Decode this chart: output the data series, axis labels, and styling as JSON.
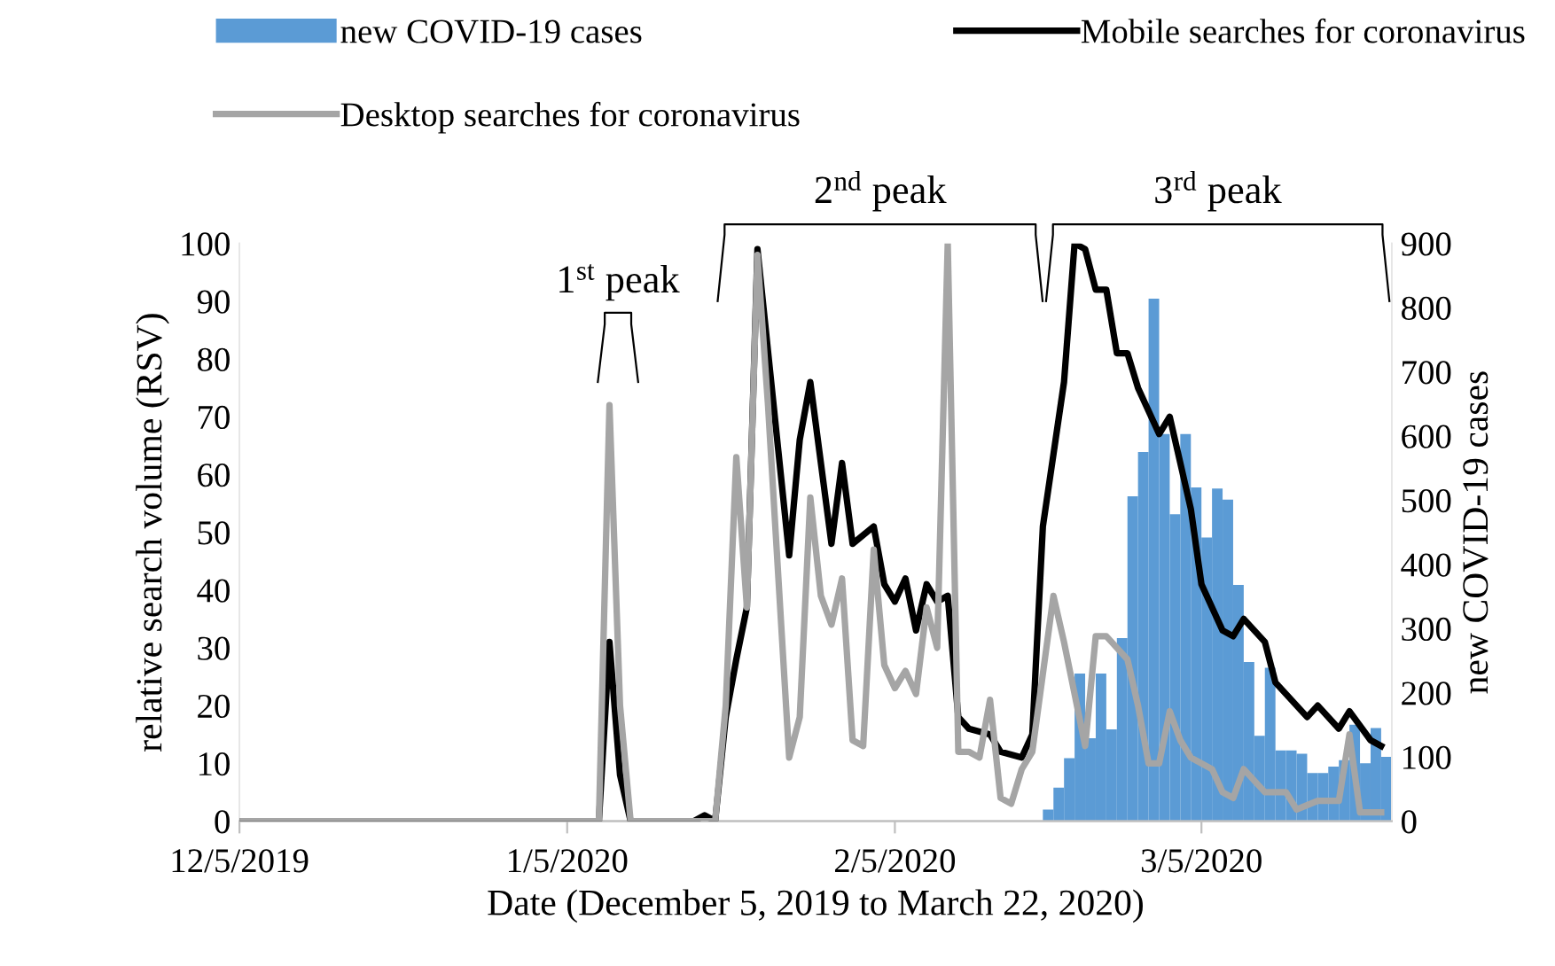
{
  "chart_data": {
    "type": "bar",
    "xlabel": "Date (December 5, 2019 to March 22, 2020)",
    "ylabel": "relative search volume (RSV)",
    "y2label": "new COVID-19 cases",
    "xlim": [
      "2019-12-05",
      "2020-03-23"
    ],
    "xticks": [
      {
        "value": "2019-12-05",
        "label": "12/5/2019"
      },
      {
        "value": "2020-01-05",
        "label": "1/5/2020"
      },
      {
        "value": "2020-02-05",
        "label": "2/5/2020"
      },
      {
        "value": "2020-03-05",
        "label": "3/5/2020"
      }
    ],
    "ylim": [
      0,
      100
    ],
    "yticks": [
      0,
      10,
      20,
      30,
      40,
      50,
      60,
      70,
      80,
      90,
      100
    ],
    "y2lim": [
      0,
      900
    ],
    "y2ticks": [
      0,
      100,
      200,
      300,
      400,
      500,
      600,
      700,
      800,
      900
    ],
    "grid": false,
    "legend": "top",
    "annotations": [
      "1$^{st}$ peak",
      "2$^{nd}$ peak",
      "3$^{rd}$ peak"
    ],
    "series": [
      {
        "name": "new COVID-19 cases",
        "axis": "y2",
        "color": "#5b9bd5",
        "x": [
          "2020-02-19",
          "2020-02-20",
          "2020-02-21",
          "2020-02-22",
          "2020-02-23",
          "2020-02-24",
          "2020-02-25",
          "2020-02-26",
          "2020-02-27",
          "2020-02-28",
          "2020-02-29",
          "2020-03-01",
          "2020-03-02",
          "2020-03-03",
          "2020-03-04",
          "2020-03-05",
          "2020-03-06",
          "2020-03-07",
          "2020-03-08",
          "2020-03-09",
          "2020-03-10",
          "2020-03-11",
          "2020-03-12",
          "2020-03-13",
          "2020-03-14",
          "2020-03-15",
          "2020-03-16",
          "2020-03-17",
          "2020-03-18",
          "2020-03-19",
          "2020-03-20",
          "2020-03-21",
          "2020-03-22"
        ],
        "values": [
          18,
          52,
          98,
          230,
          129,
          230,
          143,
          285,
          506,
          575,
          814,
          603,
          478,
          603,
          520,
          442,
          518,
          501,
          368,
          248,
          133,
          239,
          110,
          110,
          105,
          75,
          75,
          85,
          95,
          150,
          90,
          145,
          100
        ]
      },
      {
        "name": "Mobile searches for coronavirus",
        "type": "line",
        "color": "#000000",
        "x": [
          "2019-12-05",
          "2020-01-07",
          "2020-01-08",
          "2020-01-09",
          "2020-01-10",
          "2020-01-11",
          "2020-01-17",
          "2020-01-18",
          "2020-01-19",
          "2020-01-20",
          "2020-01-21",
          "2020-01-22",
          "2020-01-23",
          "2020-01-26",
          "2020-01-27",
          "2020-01-28",
          "2020-01-30",
          "2020-01-31",
          "2020-02-01",
          "2020-02-03",
          "2020-02-04",
          "2020-02-05",
          "2020-02-06",
          "2020-02-07",
          "2020-02-08",
          "2020-02-09",
          "2020-02-10",
          "2020-02-11",
          "2020-02-12",
          "2020-02-14",
          "2020-02-15",
          "2020-02-17",
          "2020-02-18",
          "2020-02-19",
          "2020-02-21",
          "2020-02-22",
          "2020-02-23",
          "2020-02-24",
          "2020-02-25",
          "2020-02-26",
          "2020-02-27",
          "2020-02-28",
          "2020-03-01",
          "2020-03-02",
          "2020-03-04",
          "2020-03-05",
          "2020-03-07",
          "2020-03-08",
          "2020-03-09",
          "2020-03-11",
          "2020-03-12",
          "2020-03-14",
          "2020-03-15",
          "2020-03-16",
          "2020-03-18",
          "2020-03-19",
          "2020-03-21",
          "2020-03-22"
        ],
        "values": [
          0,
          0,
          0,
          31,
          8,
          0,
          0,
          1,
          0,
          18,
          28,
          37,
          99,
          46,
          66,
          76,
          48,
          62,
          48,
          51,
          41,
          38,
          42,
          33,
          41,
          38,
          39,
          18,
          16,
          15,
          12,
          11,
          15,
          51,
          76,
          100,
          99,
          92,
          92,
          81,
          81,
          75,
          67,
          70,
          54,
          41,
          33,
          32,
          35,
          31,
          24,
          20,
          18,
          20,
          16,
          19,
          14,
          13
        ]
      },
      {
        "name": "Desktop searches for coronavirus",
        "type": "line",
        "color": "#a5a5a5",
        "x": [
          "2019-12-05",
          "2020-01-08",
          "2020-01-09",
          "2020-01-10",
          "2020-01-11",
          "2020-01-19",
          "2020-01-20",
          "2020-01-21",
          "2020-01-22",
          "2020-01-23",
          "2020-01-24",
          "2020-01-26",
          "2020-01-27",
          "2020-01-28",
          "2020-01-29",
          "2020-01-30",
          "2020-01-31",
          "2020-02-01",
          "2020-02-02",
          "2020-02-03",
          "2020-02-04",
          "2020-02-05",
          "2020-02-06",
          "2020-02-07",
          "2020-02-08",
          "2020-02-09",
          "2020-02-10",
          "2020-02-11",
          "2020-02-12",
          "2020-02-13",
          "2020-02-14",
          "2020-02-15",
          "2020-02-16",
          "2020-02-17",
          "2020-02-18",
          "2020-02-20",
          "2020-02-21",
          "2020-02-23",
          "2020-02-24",
          "2020-02-25",
          "2020-02-27",
          "2020-02-28",
          "2020-02-29",
          "2020-03-01",
          "2020-03-02",
          "2020-03-03",
          "2020-03-04",
          "2020-03-06",
          "2020-03-07",
          "2020-03-08",
          "2020-03-09",
          "2020-03-11",
          "2020-03-13",
          "2020-03-14",
          "2020-03-16",
          "2020-03-18",
          "2020-03-19",
          "2020-03-20",
          "2020-03-22"
        ],
        "values": [
          0,
          0,
          72,
          20,
          0,
          0,
          20,
          63,
          37,
          98,
          72,
          11,
          18,
          56,
          39,
          34,
          42,
          14,
          13,
          47,
          27,
          23,
          26,
          22,
          37,
          30,
          100,
          12,
          12,
          11,
          21,
          4,
          3,
          9,
          12,
          39,
          31,
          13,
          32,
          32,
          28,
          20,
          10,
          10,
          19,
          14,
          11,
          9,
          5,
          4,
          9,
          5,
          5,
          2,
          3.5,
          3.5,
          15,
          1.5,
          1.5
        ]
      }
    ]
  }
}
